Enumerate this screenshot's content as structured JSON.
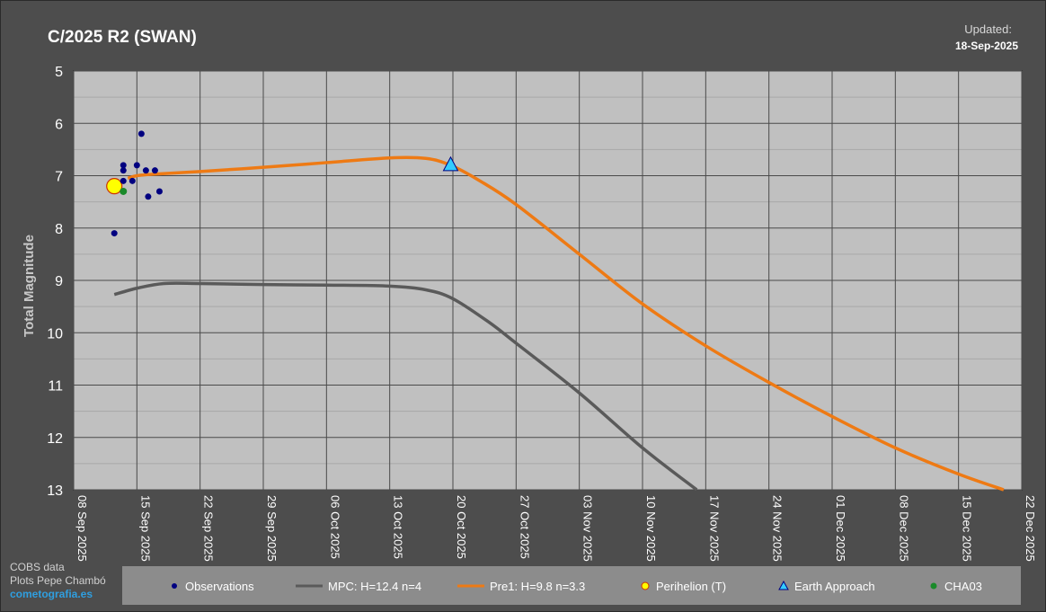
{
  "header": {
    "title": "C/2025 R2 (SWAN)",
    "updated_label": "Updated:",
    "updated_date": "18-Sep-2025"
  },
  "credits": {
    "line1": "COBS data",
    "line2": "Plots Pepe Chambó",
    "site": "cometografia.es"
  },
  "colors": {
    "background": "#4d4d4d",
    "plot_area": "#c0c0c0",
    "observations": "#000080",
    "mpc_curve": "#5a5a5a",
    "pre1_curve": "#ee7a14",
    "perihelion": "#ffff00",
    "earth_approach": "#33ccff",
    "cha03": "#1a8a2a"
  },
  "legend": {
    "observations": "Observations",
    "mpc": "MPC: H=12.4 n=4",
    "pre1": "Pre1: H=9.8 n=3.3",
    "perihelion": "Perihelion (T)",
    "earth_approach": "Earth Approach",
    "cha03": "CHA03"
  },
  "chart_data": {
    "type": "scatter",
    "title": "C/2025 R2 (SWAN)",
    "ylabel": "Total Magnitude",
    "xlabel": "",
    "y_inverted": true,
    "ylim": [
      5,
      13
    ],
    "xlim": [
      "2025-09-08",
      "2025-12-22"
    ],
    "grid": true,
    "legend_position": "bottom",
    "x_ticks": [
      "08 Sep 2025",
      "15 Sep 2025",
      "22 Sep 2025",
      "29 Sep 2025",
      "06 Oct 2025",
      "13 Oct 2025",
      "20 Oct 2025",
      "27 Oct 2025",
      "03 Nov 2025",
      "10 Nov 2025",
      "17 Nov 2025",
      "24 Nov 2025",
      "01 Dec 2025",
      "08 Dec 2025",
      "15 Dec 2025",
      "22 Dec 2025"
    ],
    "y_ticks": [
      5,
      6,
      7,
      8,
      9,
      10,
      11,
      12,
      13
    ],
    "observations": [
      {
        "date": "2025-09-12 12:00",
        "mag": 8.1
      },
      {
        "date": "2025-09-13 12:00",
        "mag": 6.8
      },
      {
        "date": "2025-09-13 12:00",
        "mag": 6.9
      },
      {
        "date": "2025-09-13 12:00",
        "mag": 7.1
      },
      {
        "date": "2025-09-14 12:00",
        "mag": 7.1
      },
      {
        "date": "2025-09-15 00:00",
        "mag": 6.8
      },
      {
        "date": "2025-09-15 12:00",
        "mag": 6.2
      },
      {
        "date": "2025-09-16 00:00",
        "mag": 6.9
      },
      {
        "date": "2025-09-16 06:00",
        "mag": 7.4
      },
      {
        "date": "2025-09-17 00:00",
        "mag": 6.9
      },
      {
        "date": "2025-09-17 12:00",
        "mag": 7.3
      }
    ],
    "cha03": [
      {
        "date": "2025-09-13 12:00",
        "mag": 7.3
      }
    ],
    "perihelion": {
      "date": "2025-09-12 12:00",
      "mag": 7.2
    },
    "earth_approach": {
      "date": "2025-10-19 18:00",
      "mag": 6.8
    },
    "series": [
      {
        "name": "MPC: H=12.4 n=4",
        "points": [
          {
            "date": "2025-09-12 12:00",
            "mag": 9.27
          },
          {
            "date": "2025-09-15 00:00",
            "mag": 9.15
          },
          {
            "date": "2025-09-18 00:00",
            "mag": 9.06
          },
          {
            "date": "2025-09-22 00:00",
            "mag": 9.06
          },
          {
            "date": "2025-09-29 00:00",
            "mag": 9.08
          },
          {
            "date": "2025-10-06 00:00",
            "mag": 9.09
          },
          {
            "date": "2025-10-13 00:00",
            "mag": 9.11
          },
          {
            "date": "2025-10-17 00:00",
            "mag": 9.18
          },
          {
            "date": "2025-10-20 00:00",
            "mag": 9.35
          },
          {
            "date": "2025-10-24 00:00",
            "mag": 9.8
          },
          {
            "date": "2025-10-27 00:00",
            "mag": 10.2
          },
          {
            "date": "2025-11-03 00:00",
            "mag": 11.15
          },
          {
            "date": "2025-11-10 00:00",
            "mag": 12.2
          },
          {
            "date": "2025-11-16 00:00",
            "mag": 13.0
          }
        ]
      },
      {
        "name": "Pre1: H=9.8 n=3.3",
        "points": [
          {
            "date": "2025-09-14 00:00",
            "mag": 7.05
          },
          {
            "date": "2025-09-15 00:00",
            "mag": 7.0
          },
          {
            "date": "2025-09-17 00:00",
            "mag": 6.97
          },
          {
            "date": "2025-09-22 00:00",
            "mag": 6.92
          },
          {
            "date": "2025-09-29 00:00",
            "mag": 6.84
          },
          {
            "date": "2025-10-06 00:00",
            "mag": 6.75
          },
          {
            "date": "2025-10-13 00:00",
            "mag": 6.66
          },
          {
            "date": "2025-10-17 00:00",
            "mag": 6.67
          },
          {
            "date": "2025-10-19 18:00",
            "mag": 6.8
          },
          {
            "date": "2025-10-23 00:00",
            "mag": 7.1
          },
          {
            "date": "2025-10-27 00:00",
            "mag": 7.55
          },
          {
            "date": "2025-11-03 00:00",
            "mag": 8.5
          },
          {
            "date": "2025-11-10 00:00",
            "mag": 9.45
          },
          {
            "date": "2025-11-17 00:00",
            "mag": 10.25
          },
          {
            "date": "2025-11-24 00:00",
            "mag": 10.95
          },
          {
            "date": "2025-12-01 00:00",
            "mag": 11.6
          },
          {
            "date": "2025-12-08 00:00",
            "mag": 12.2
          },
          {
            "date": "2025-12-15 00:00",
            "mag": 12.7
          },
          {
            "date": "2025-12-20 00:00",
            "mag": 13.0
          }
        ]
      }
    ]
  }
}
